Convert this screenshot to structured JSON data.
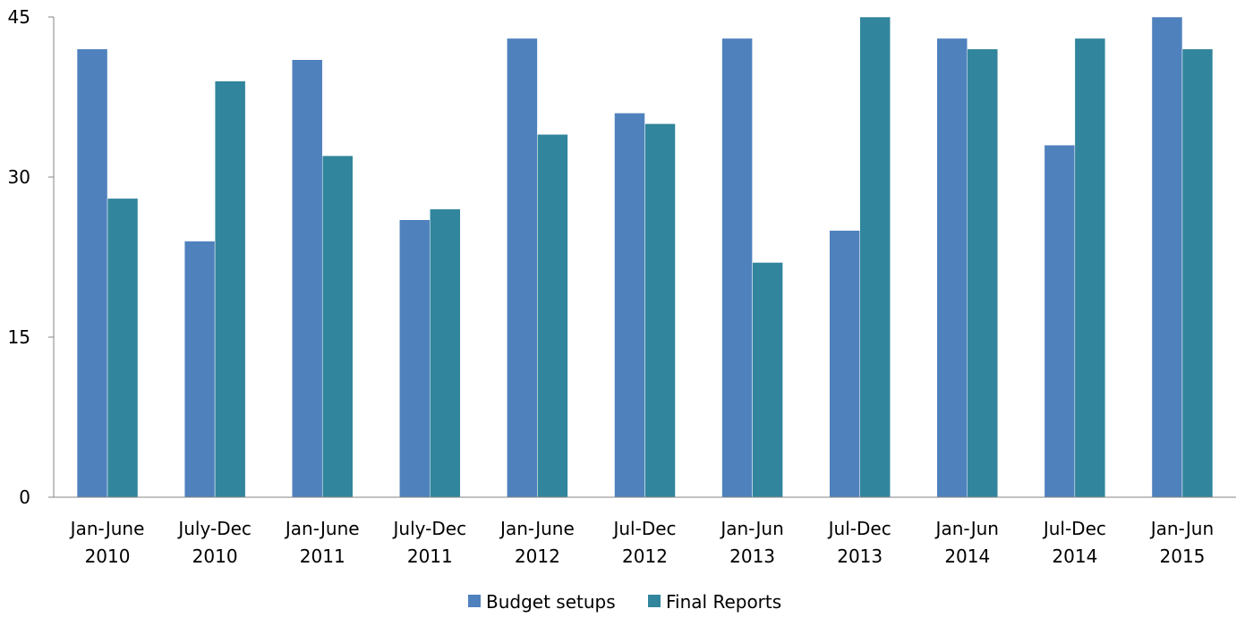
{
  "chart_data": {
    "type": "bar",
    "title": "",
    "xlabel": "",
    "ylabel": "",
    "ylim": [
      0,
      45
    ],
    "yticks": [
      "0",
      "15",
      "30",
      "45"
    ],
    "grid": false,
    "legend_position": "bottom",
    "categories": [
      [
        "Jan-June",
        "2010"
      ],
      [
        "July-Dec",
        "2010"
      ],
      [
        "Jan-June",
        "2011"
      ],
      [
        "July-Dec",
        "2011"
      ],
      [
        "Jan-June",
        "2012"
      ],
      [
        "Jul-Dec",
        "2012"
      ],
      [
        "Jan-Jun",
        "2013"
      ],
      [
        "Jul-Dec",
        "2013"
      ],
      [
        "Jan-Jun",
        "2014"
      ],
      [
        "Jul-Dec",
        "2014"
      ],
      [
        "Jan-Jun",
        "2015"
      ]
    ],
    "series": [
      {
        "name": "Budget setups",
        "color": "#4f81bd",
        "values": [
          42,
          24,
          41,
          26,
          43,
          36,
          43,
          25,
          43,
          33,
          45
        ]
      },
      {
        "name": "Final Reports",
        "color": "#31859c",
        "values": [
          28,
          39,
          32,
          27,
          34,
          35,
          22,
          45,
          42,
          43,
          42
        ]
      }
    ]
  }
}
